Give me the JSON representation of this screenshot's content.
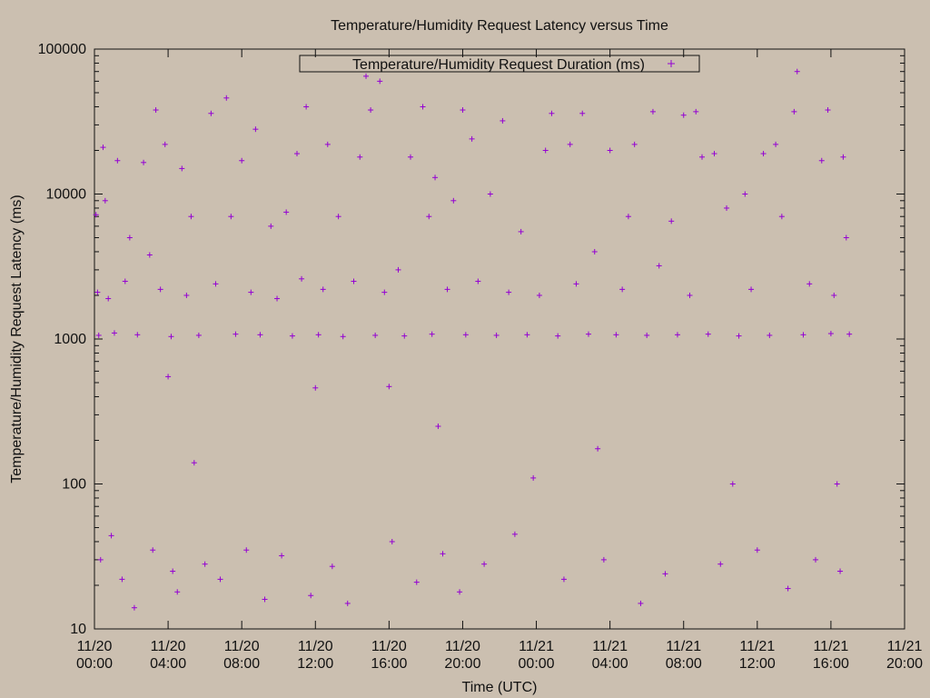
{
  "chart_data": {
    "type": "scatter",
    "title": "Temperature/Humidity Request Latency versus Time",
    "xlabel": "Time (UTC)",
    "ylabel": "Temperature/Humidity Request Latency (ms)",
    "x_ticks": [
      {
        "date": "11/20",
        "time": "00:00"
      },
      {
        "date": "11/20",
        "time": "04:00"
      },
      {
        "date": "11/20",
        "time": "08:00"
      },
      {
        "date": "11/20",
        "time": "12:00"
      },
      {
        "date": "11/20",
        "time": "16:00"
      },
      {
        "date": "11/20",
        "time": "20:00"
      },
      {
        "date": "11/21",
        "time": "00:00"
      },
      {
        "date": "11/21",
        "time": "04:00"
      },
      {
        "date": "11/21",
        "time": "08:00"
      },
      {
        "date": "11/21",
        "time": "12:00"
      },
      {
        "date": "11/21",
        "time": "16:00"
      },
      {
        "date": "11/21",
        "time": "20:00"
      }
    ],
    "y_ticks": [
      "10",
      "100",
      "1000",
      "10000",
      "100000"
    ],
    "xlim": [
      "11/20 00:00",
      "11/21 20:00"
    ],
    "ylim": [
      10,
      100000
    ],
    "yscale": "log",
    "legend": {
      "position": "top-center",
      "label": "Temperature/Humidity Request Duration (ms)"
    },
    "series": [
      {
        "name": "Temperature/Humidity Request Duration (ms)",
        "color": "#9400d3",
        "marker": "plus",
        "points": [
          [
            "11/20 00:05",
            7200
          ],
          [
            "11/20 00:10",
            2100
          ],
          [
            "11/20 00:14",
            1060
          ],
          [
            "11/20 00:20",
            30
          ],
          [
            "11/20 00:28",
            21000
          ],
          [
            "11/20 00:35",
            9000
          ],
          [
            "11/20 00:45",
            1900
          ],
          [
            "11/20 00:55",
            44
          ],
          [
            "11/20 01:05",
            1100
          ],
          [
            "11/20 01:15",
            17000
          ],
          [
            "11/20 01:30",
            22
          ],
          [
            "11/20 01:40",
            2500
          ],
          [
            "11/20 01:55",
            5000
          ],
          [
            "11/20 02:10",
            14
          ],
          [
            "11/20 02:20",
            1070
          ],
          [
            "11/20 02:40",
            16500
          ],
          [
            "11/20 03:00",
            3800
          ],
          [
            "11/20 03:10",
            35
          ],
          [
            "11/20 03:20",
            38000
          ],
          [
            "11/20 03:35",
            2200
          ],
          [
            "11/20 03:50",
            22000
          ],
          [
            "11/20 04:00",
            550
          ],
          [
            "11/20 04:10",
            1040
          ],
          [
            "11/20 04:15",
            25
          ],
          [
            "11/20 04:30",
            18
          ],
          [
            "11/20 04:45",
            15000
          ],
          [
            "11/20 05:00",
            2000
          ],
          [
            "11/20 05:15",
            7000
          ],
          [
            "11/20 05:25",
            140
          ],
          [
            "11/20 05:40",
            1060
          ],
          [
            "11/20 06:00",
            28
          ],
          [
            "11/20 06:20",
            36000
          ],
          [
            "11/20 06:35",
            2400
          ],
          [
            "11/20 06:50",
            22
          ],
          [
            "11/20 07:10",
            46000
          ],
          [
            "11/20 07:25",
            7000
          ],
          [
            "11/20 07:40",
            1080
          ],
          [
            "11/20 08:00",
            17000
          ],
          [
            "11/20 08:15",
            35
          ],
          [
            "11/20 08:30",
            2100
          ],
          [
            "11/20 08:45",
            28000
          ],
          [
            "11/20 09:00",
            1070
          ],
          [
            "11/20 09:15",
            16
          ],
          [
            "11/20 09:35",
            6000
          ],
          [
            "11/20 09:55",
            1900
          ],
          [
            "11/20 10:10",
            32
          ],
          [
            "11/20 10:25",
            7500
          ],
          [
            "11/20 10:45",
            1050
          ],
          [
            "11/20 11:00",
            19000
          ],
          [
            "11/20 11:15",
            2600
          ],
          [
            "11/20 11:30",
            40000
          ],
          [
            "11/20 11:45",
            17
          ],
          [
            "11/20 12:00",
            460
          ],
          [
            "11/20 12:10",
            1070
          ],
          [
            "11/20 12:25",
            2200
          ],
          [
            "11/20 12:40",
            22000
          ],
          [
            "11/20 12:55",
            27
          ],
          [
            "11/20 13:15",
            7000
          ],
          [
            "11/20 13:30",
            1040
          ],
          [
            "11/20 13:45",
            15
          ],
          [
            "11/20 14:05",
            2500
          ],
          [
            "11/20 14:25",
            18000
          ],
          [
            "11/20 14:45",
            65000
          ],
          [
            "11/20 15:00",
            38000
          ],
          [
            "11/20 15:15",
            1060
          ],
          [
            "11/20 15:30",
            60000
          ],
          [
            "11/20 15:45",
            2100
          ],
          [
            "11/20 16:00",
            470
          ],
          [
            "11/20 16:10",
            40
          ],
          [
            "11/20 16:30",
            3000
          ],
          [
            "11/20 16:50",
            1050
          ],
          [
            "11/20 17:10",
            18000
          ],
          [
            "11/20 17:30",
            21
          ],
          [
            "11/20 17:50",
            40000
          ],
          [
            "11/20 18:10",
            7000
          ],
          [
            "11/20 18:20",
            1080
          ],
          [
            "11/20 18:30",
            13000
          ],
          [
            "11/20 18:40",
            250
          ],
          [
            "11/20 18:55",
            33
          ],
          [
            "11/20 19:10",
            2200
          ],
          [
            "11/20 19:30",
            9000
          ],
          [
            "11/20 19:50",
            18
          ],
          [
            "11/20 20:00",
            38000
          ],
          [
            "11/20 20:10",
            1070
          ],
          [
            "11/20 20:30",
            24000
          ],
          [
            "11/20 20:50",
            2500
          ],
          [
            "11/20 21:10",
            28
          ],
          [
            "11/20 21:30",
            10000
          ],
          [
            "11/20 21:50",
            1060
          ],
          [
            "11/20 22:10",
            32000
          ],
          [
            "11/20 22:30",
            2100
          ],
          [
            "11/20 22:50",
            45
          ],
          [
            "11/20 23:10",
            5500
          ],
          [
            "11/20 23:30",
            1070
          ],
          [
            "11/20 23:50",
            110
          ],
          [
            "11/21 00:10",
            2000
          ],
          [
            "11/21 00:30",
            20000
          ],
          [
            "11/21 00:50",
            36000
          ],
          [
            "11/21 01:10",
            1050
          ],
          [
            "11/21 01:30",
            22
          ],
          [
            "11/21 01:50",
            22000
          ],
          [
            "11/21 02:10",
            2400
          ],
          [
            "11/21 02:30",
            36000
          ],
          [
            "11/21 02:50",
            1080
          ],
          [
            "11/21 03:10",
            4000
          ],
          [
            "11/21 03:20",
            175
          ],
          [
            "11/21 03:40",
            30
          ],
          [
            "11/21 04:00",
            20000
          ],
          [
            "11/21 04:20",
            1070
          ],
          [
            "11/21 04:40",
            2200
          ],
          [
            "11/21 05:00",
            7000
          ],
          [
            "11/21 05:20",
            22000
          ],
          [
            "11/21 05:40",
            15
          ],
          [
            "11/21 06:00",
            1060
          ],
          [
            "11/21 06:20",
            37000
          ],
          [
            "11/21 06:40",
            3200
          ],
          [
            "11/21 07:00",
            24
          ],
          [
            "11/21 07:20",
            6500
          ],
          [
            "11/21 07:40",
            1070
          ],
          [
            "11/21 08:00",
            35000
          ],
          [
            "11/21 08:20",
            2000
          ],
          [
            "11/21 08:40",
            37000
          ],
          [
            "11/21 09:00",
            18000
          ],
          [
            "11/21 09:20",
            1080
          ],
          [
            "11/21 09:40",
            19000
          ],
          [
            "11/21 10:00",
            28
          ],
          [
            "11/21 10:20",
            8000
          ],
          [
            "11/21 10:40",
            100
          ],
          [
            "11/21 11:00",
            1050
          ],
          [
            "11/21 11:20",
            10000
          ],
          [
            "11/21 11:40",
            2200
          ],
          [
            "11/21 12:00",
            35
          ],
          [
            "11/21 12:20",
            19000
          ],
          [
            "11/21 12:40",
            1060
          ],
          [
            "11/21 13:00",
            22000
          ],
          [
            "11/21 13:20",
            7000
          ],
          [
            "11/21 13:40",
            19
          ],
          [
            "11/21 14:00",
            37000
          ],
          [
            "11/21 14:10",
            70000
          ],
          [
            "11/21 14:30",
            1070
          ],
          [
            "11/21 14:50",
            2400
          ],
          [
            "11/21 15:10",
            30
          ],
          [
            "11/21 15:30",
            17000
          ],
          [
            "11/21 15:50",
            38000
          ],
          [
            "11/21 16:00",
            1090
          ],
          [
            "11/21 16:10",
            2000
          ],
          [
            "11/21 16:20",
            100
          ],
          [
            "11/21 16:30",
            25
          ],
          [
            "11/21 16:40",
            18000
          ],
          [
            "11/21 16:50",
            5000
          ],
          [
            "11/21 17:00",
            1080
          ]
        ]
      }
    ]
  }
}
